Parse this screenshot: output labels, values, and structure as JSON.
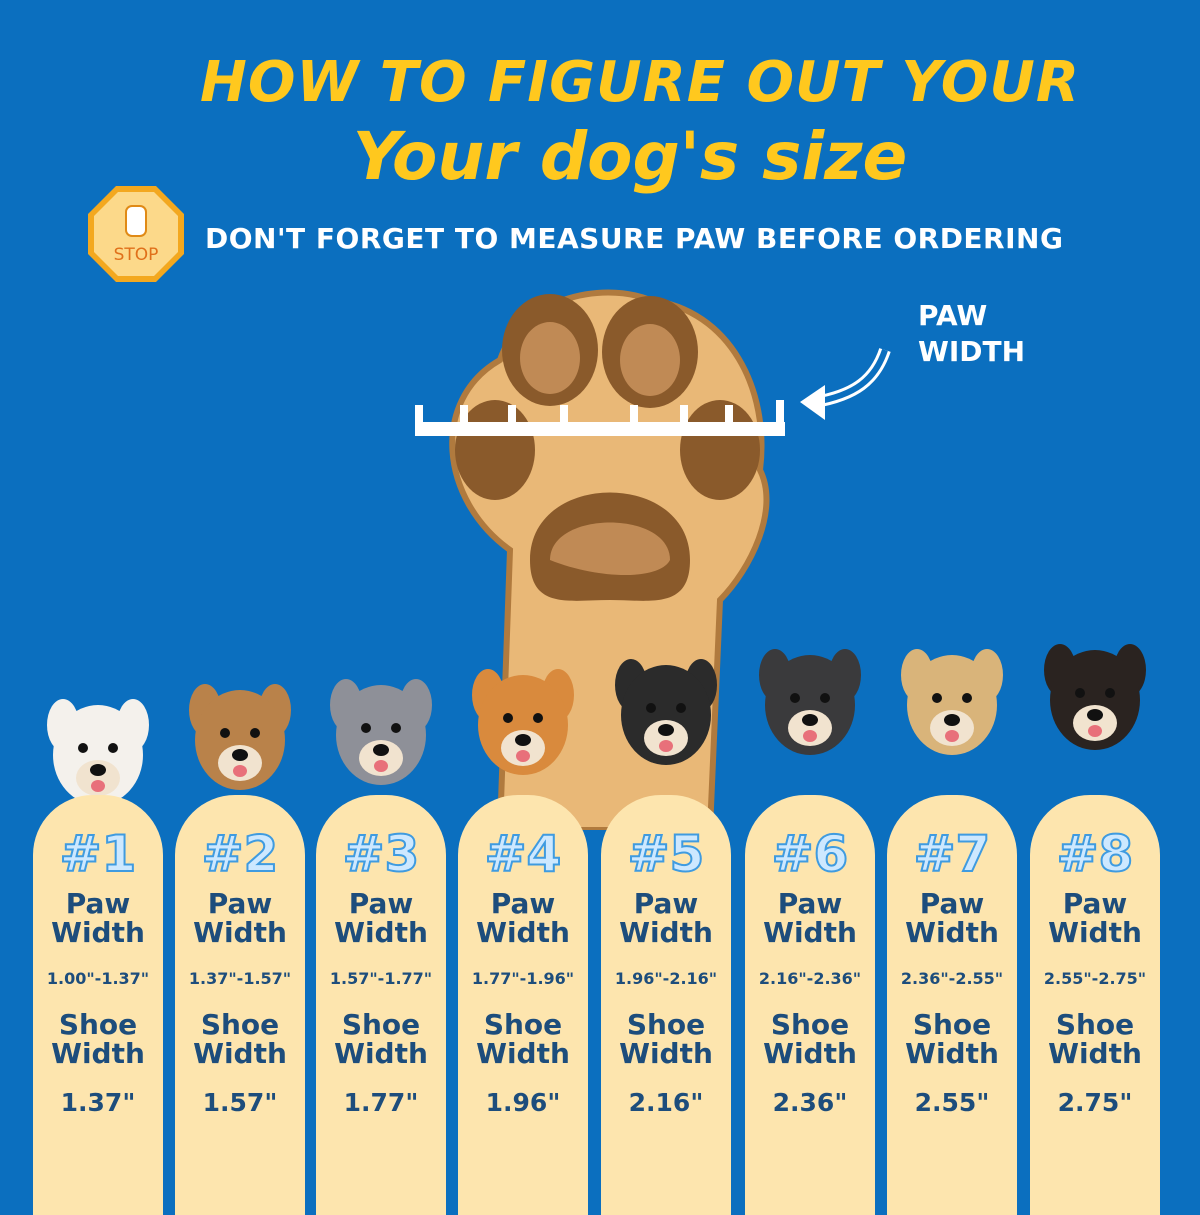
{
  "title_line1": "HOW TO FIGURE OUT YOUR",
  "title_line2": "Your dog's size",
  "stop_sign": "STOP",
  "subtitle": "DON'T FORGET TO MEASURE PAW BEFORE ORDERING",
  "paw_label_1": "PAW",
  "paw_label_2": "WIDTH",
  "colors": {
    "background": "#0b6fbf",
    "title": "#ffc81e",
    "card": "#fde5ae",
    "card_text": "#1d4d7c"
  },
  "sizes": [
    {
      "num": "#1",
      "paw_label": "Paw Width",
      "range": "1.00\"-1.37\"",
      "shoe_label": "Shoe Width",
      "shoe": "1.37\""
    },
    {
      "num": "#2",
      "paw_label": "Paw Width",
      "range": "1.37\"-1.57\"",
      "shoe_label": "Shoe Width",
      "shoe": "1.57\""
    },
    {
      "num": "#3",
      "paw_label": "Paw Width",
      "range": "1.57\"-1.77\"",
      "shoe_label": "Shoe Width",
      "shoe": "1.77\""
    },
    {
      "num": "#4",
      "paw_label": "Paw Width",
      "range": "1.77\"-1.96\"",
      "shoe_label": "Shoe Width",
      "shoe": "1.96\""
    },
    {
      "num": "#5",
      "paw_label": "Paw Width",
      "range": "1.96\"-2.16\"",
      "shoe_label": "Shoe Width",
      "shoe": "2.16\""
    },
    {
      "num": "#6",
      "paw_label": "Paw Width",
      "range": "2.16\"-2.36\"",
      "shoe_label": "Shoe Width",
      "shoe": "2.36\""
    },
    {
      "num": "#7",
      "paw_label": "Paw Width",
      "range": "2.36\"-2.55\"",
      "shoe_label": "Shoe Width",
      "shoe": "2.55\""
    },
    {
      "num": "#8",
      "paw_label": "Paw Width",
      "range": "2.55\"-2.75\"",
      "shoe_label": "Shoe Width",
      "shoe": "2.75\""
    }
  ]
}
